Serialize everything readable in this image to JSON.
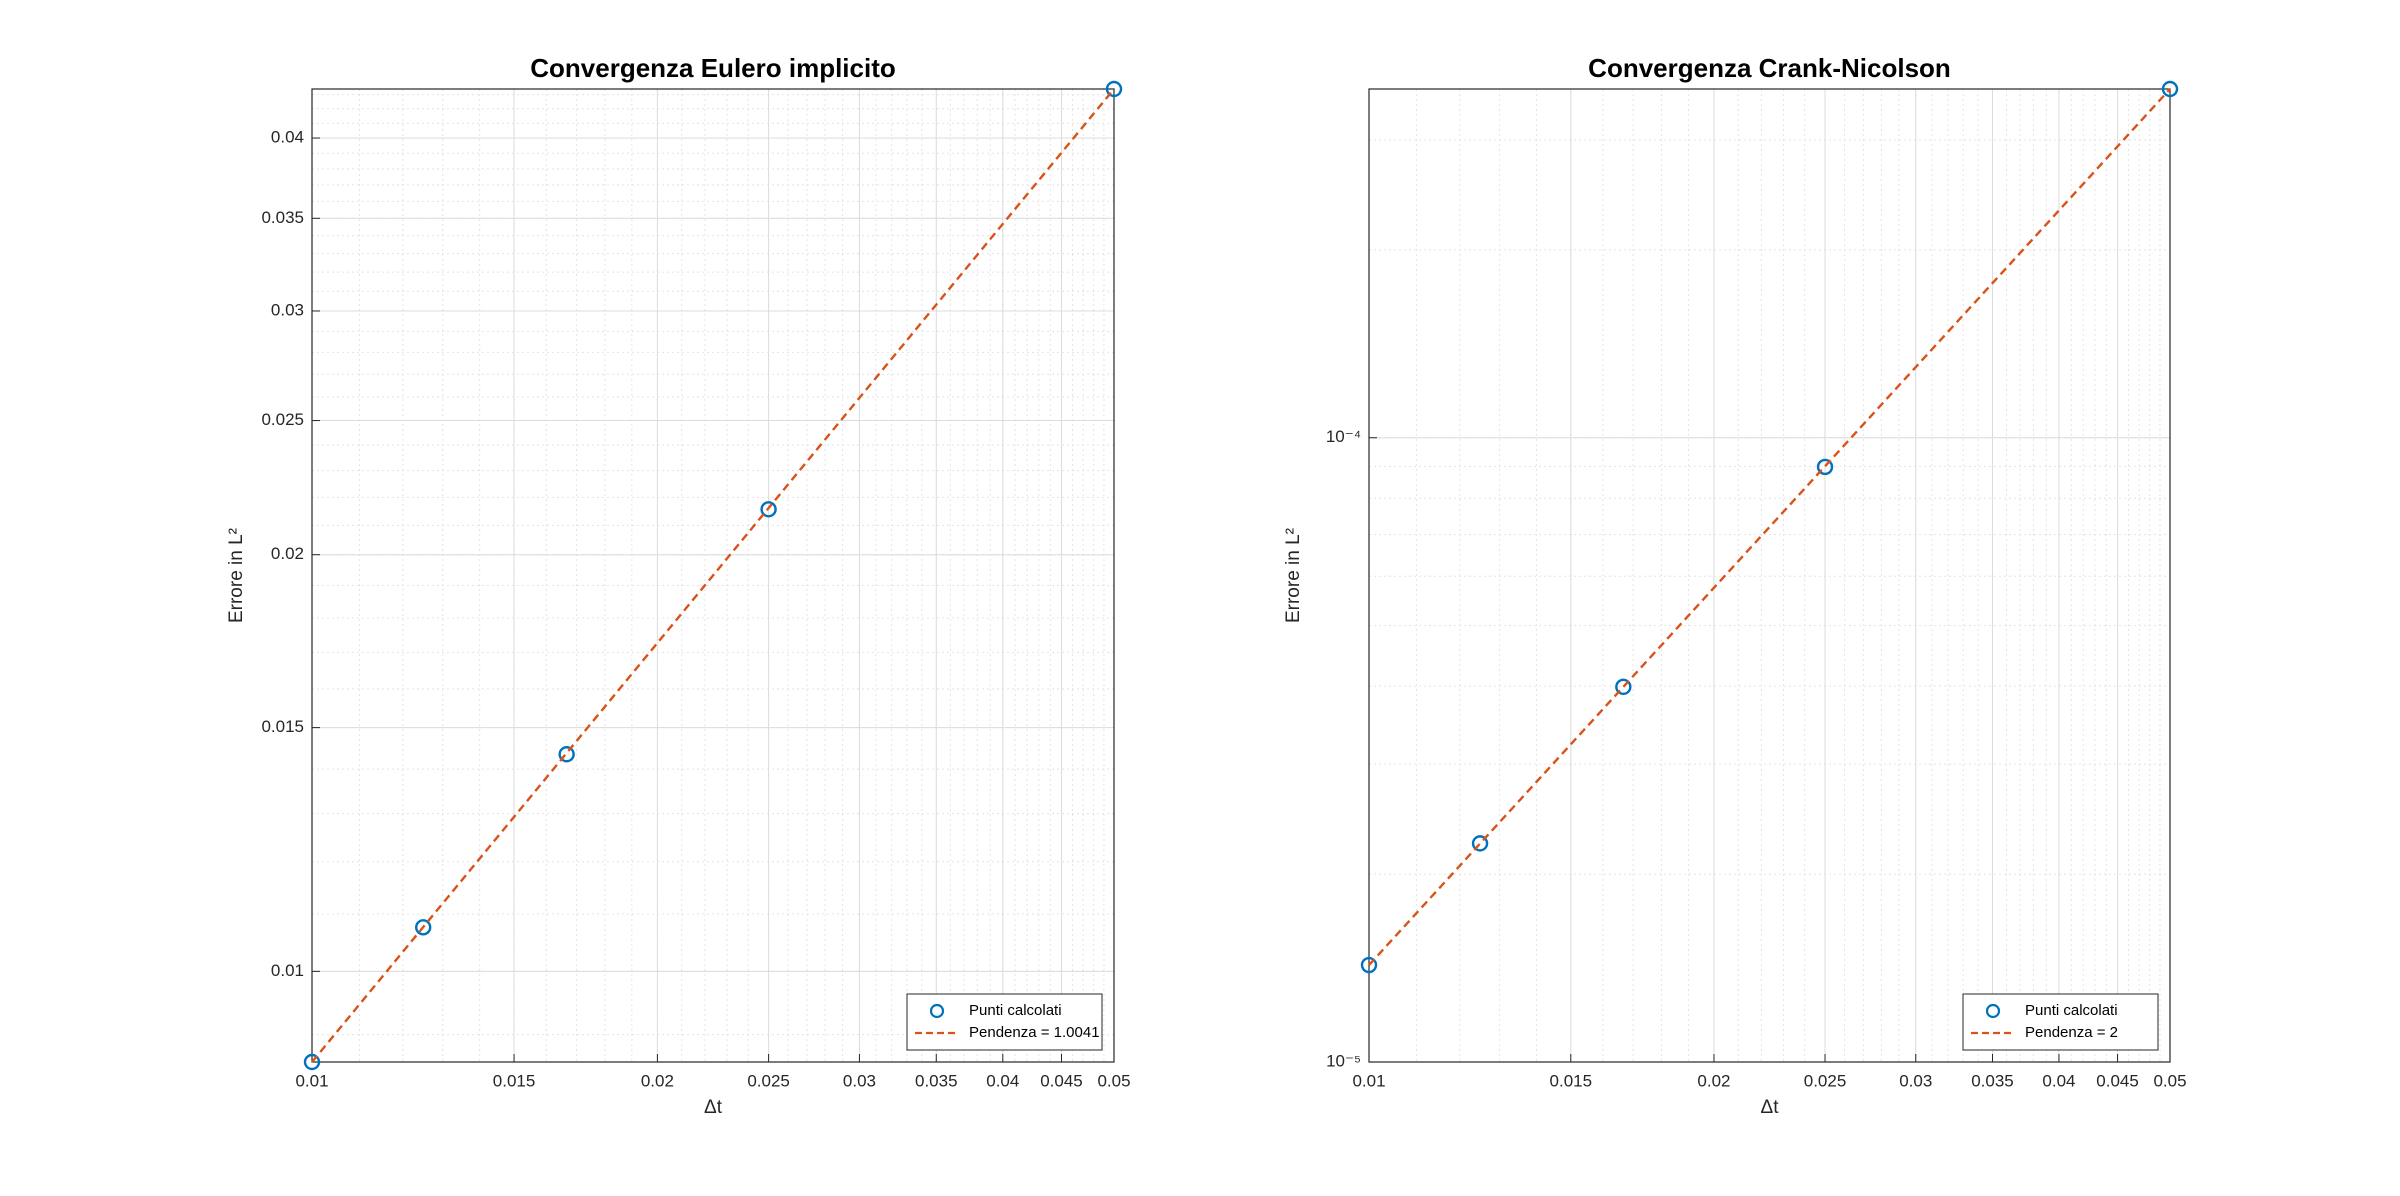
{
  "chart_data": [
    {
      "type": "scatter",
      "title": "Convergenza Eulero implicito",
      "xlabel": "Δt",
      "ylabel": "Errore in L²",
      "xscale": "log",
      "yscale": "log",
      "grid": true,
      "legend": "lower right",
      "xlim": [
        0.01,
        0.05
      ],
      "xticks": [
        0.01,
        0.015,
        0.02,
        0.025,
        0.03,
        0.035,
        0.04,
        0.045,
        0.05
      ],
      "ylim": [
        0.0086,
        0.0434
      ],
      "yticks": [
        0.01,
        0.015,
        0.02,
        0.025,
        0.03,
        0.035,
        0.04
      ],
      "series": [
        {
          "name": "Punti calcolati",
          "color": "#0072BD",
          "mode": "markers",
          "x": [
            0.01,
            0.0125,
            0.01667,
            0.025,
            0.05
          ],
          "values": [
            0.0086,
            0.01076,
            0.01435,
            0.02157,
            0.0434
          ]
        },
        {
          "name": "Pendenza = 1.0041",
          "color": "#D95319",
          "mode": "dashed-line",
          "x": [
            0.01,
            0.05
          ],
          "values": [
            0.0086,
            0.0434
          ]
        }
      ]
    },
    {
      "type": "scatter",
      "title": "Convergenza Crank-Nicolson",
      "xlabel": "Δt",
      "ylabel": "Errore in L²",
      "xscale": "log",
      "yscale": "log",
      "grid": true,
      "legend": "lower right",
      "xlim": [
        0.01,
        0.05
      ],
      "xticks": [
        0.01,
        0.015,
        0.02,
        0.025,
        0.03,
        0.035,
        0.04,
        0.045,
        0.05
      ],
      "ylim": [
        1e-05,
        0.000362
      ],
      "yticks": [
        {
          "value": 1e-05,
          "label": "10⁻⁵"
        },
        {
          "value": 0.0001,
          "label": "10⁻⁴"
        }
      ],
      "series": [
        {
          "name": "Punti calcolati",
          "color": "#0072BD",
          "mode": "markers",
          "x": [
            0.01,
            0.0125,
            0.01667,
            0.025,
            0.05
          ],
          "values": [
            1.43e-05,
            2.24e-05,
            3.99e-05,
            8.98e-05,
            0.000362
          ]
        },
        {
          "name": "Pendenza = 2",
          "color": "#D95319",
          "mode": "dashed-line",
          "x": [
            0.01,
            0.05
          ],
          "values": [
            1.43e-05,
            0.000362
          ]
        }
      ]
    }
  ]
}
